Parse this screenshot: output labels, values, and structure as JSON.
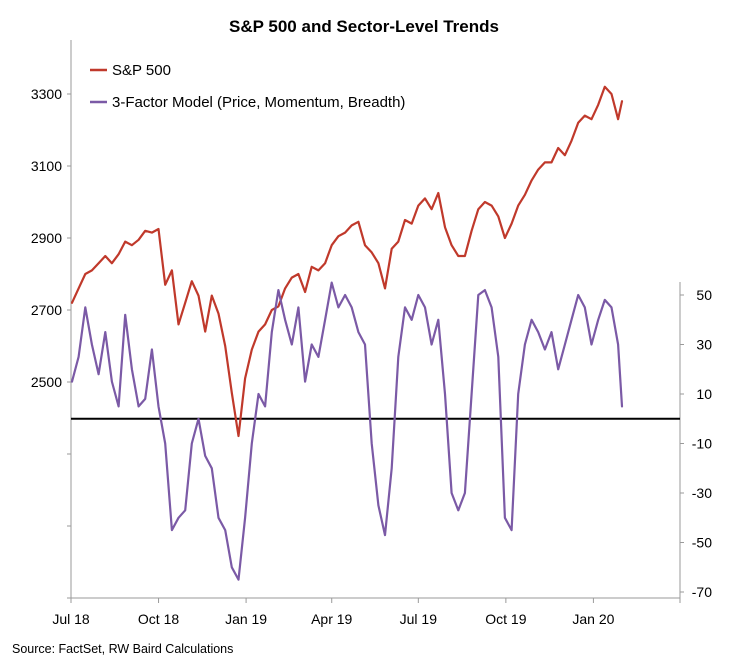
{
  "chart_data": {
    "type": "line",
    "title": "S&P 500 and Sector-Level Trends",
    "source": "Source: FactSet, RW Baird Calculations",
    "x_tick_labels": [
      "Jul 18",
      "Oct 18",
      "Jan 19",
      "Apr 19",
      "Jul 19",
      "Oct 19",
      "Jan 20"
    ],
    "x_tick_dates": [
      "2018-07-01",
      "2018-10-01",
      "2019-01-01",
      "2019-04-01",
      "2019-07-01",
      "2019-10-01",
      "2020-01-01"
    ],
    "xlim": [
      "2018-07-01",
      "2020-04-01"
    ],
    "left_axis": {
      "ticks": [
        2500,
        2700,
        2900,
        3100,
        3300
      ],
      "range": [
        1900,
        3450
      ],
      "series": "S&P 500"
    },
    "right_axis": {
      "ticks": [
        50,
        30,
        10,
        -10,
        -30,
        -50,
        -70
      ],
      "range": [
        -70,
        50
      ],
      "reference_line": 0,
      "series": "3-Factor Model (Price, Momentum, Breadth)"
    },
    "legend_position": "top-left",
    "series": [
      {
        "name": "S&P 500",
        "axis": "left",
        "color": "#C0392B",
        "points": [
          [
            "2018-07-02",
            2720
          ],
          [
            "2018-07-09",
            2760
          ],
          [
            "2018-07-16",
            2800
          ],
          [
            "2018-07-23",
            2810
          ],
          [
            "2018-07-30",
            2830
          ],
          [
            "2018-08-06",
            2850
          ],
          [
            "2018-08-13",
            2830
          ],
          [
            "2018-08-20",
            2855
          ],
          [
            "2018-08-27",
            2890
          ],
          [
            "2018-09-03",
            2880
          ],
          [
            "2018-09-10",
            2895
          ],
          [
            "2018-09-17",
            2920
          ],
          [
            "2018-09-24",
            2915
          ],
          [
            "2018-10-01",
            2925
          ],
          [
            "2018-10-08",
            2770
          ],
          [
            "2018-10-15",
            2810
          ],
          [
            "2018-10-22",
            2660
          ],
          [
            "2018-10-29",
            2720
          ],
          [
            "2018-11-05",
            2780
          ],
          [
            "2018-11-12",
            2740
          ],
          [
            "2018-11-19",
            2640
          ],
          [
            "2018-11-26",
            2740
          ],
          [
            "2018-12-03",
            2690
          ],
          [
            "2018-12-10",
            2600
          ],
          [
            "2018-12-17",
            2470
          ],
          [
            "2018-12-24",
            2350
          ],
          [
            "2018-12-31",
            2510
          ],
          [
            "2019-01-07",
            2590
          ],
          [
            "2019-01-14",
            2640
          ],
          [
            "2019-01-21",
            2660
          ],
          [
            "2019-01-28",
            2700
          ],
          [
            "2019-02-04",
            2710
          ],
          [
            "2019-02-11",
            2760
          ],
          [
            "2019-02-18",
            2790
          ],
          [
            "2019-02-25",
            2800
          ],
          [
            "2019-03-04",
            2750
          ],
          [
            "2019-03-11",
            2820
          ],
          [
            "2019-03-18",
            2810
          ],
          [
            "2019-03-25",
            2830
          ],
          [
            "2019-04-01",
            2880
          ],
          [
            "2019-04-08",
            2905
          ],
          [
            "2019-04-15",
            2915
          ],
          [
            "2019-04-22",
            2935
          ],
          [
            "2019-04-29",
            2945
          ],
          [
            "2019-05-06",
            2880
          ],
          [
            "2019-05-13",
            2860
          ],
          [
            "2019-05-20",
            2830
          ],
          [
            "2019-05-27",
            2760
          ],
          [
            "2019-06-03",
            2870
          ],
          [
            "2019-06-10",
            2890
          ],
          [
            "2019-06-17",
            2950
          ],
          [
            "2019-06-24",
            2940
          ],
          [
            "2019-07-01",
            2990
          ],
          [
            "2019-07-08",
            3010
          ],
          [
            "2019-07-15",
            2980
          ],
          [
            "2019-07-22",
            3025
          ],
          [
            "2019-07-29",
            2930
          ],
          [
            "2019-08-05",
            2880
          ],
          [
            "2019-08-12",
            2850
          ],
          [
            "2019-08-19",
            2850
          ],
          [
            "2019-08-26",
            2920
          ],
          [
            "2019-09-02",
            2980
          ],
          [
            "2019-09-09",
            3000
          ],
          [
            "2019-09-16",
            2990
          ],
          [
            "2019-09-23",
            2960
          ],
          [
            "2019-09-30",
            2900
          ],
          [
            "2019-10-07",
            2940
          ],
          [
            "2019-10-14",
            2990
          ],
          [
            "2019-10-21",
            3020
          ],
          [
            "2019-10-28",
            3060
          ],
          [
            "2019-11-04",
            3090
          ],
          [
            "2019-11-11",
            3110
          ],
          [
            "2019-11-18",
            3110
          ],
          [
            "2019-11-25",
            3150
          ],
          [
            "2019-12-02",
            3130
          ],
          [
            "2019-12-09",
            3170
          ],
          [
            "2019-12-16",
            3220
          ],
          [
            "2019-12-23",
            3240
          ],
          [
            "2019-12-30",
            3230
          ],
          [
            "2020-01-06",
            3270
          ],
          [
            "2020-01-13",
            3320
          ],
          [
            "2020-01-20",
            3300
          ],
          [
            "2020-01-27",
            3230
          ],
          [
            "2020-01-31",
            3280
          ]
        ]
      },
      {
        "name": "3-Factor Model (Price, Momentum, Breadth)",
        "axis": "right",
        "color": "#7B5AA6",
        "points": [
          [
            "2018-07-02",
            15
          ],
          [
            "2018-07-09",
            25
          ],
          [
            "2018-07-16",
            45
          ],
          [
            "2018-07-23",
            30
          ],
          [
            "2018-07-30",
            18
          ],
          [
            "2018-08-06",
            35
          ],
          [
            "2018-08-13",
            15
          ],
          [
            "2018-08-20",
            5
          ],
          [
            "2018-08-27",
            42
          ],
          [
            "2018-09-03",
            20
          ],
          [
            "2018-09-10",
            5
          ],
          [
            "2018-09-17",
            8
          ],
          [
            "2018-09-24",
            28
          ],
          [
            "2018-10-01",
            5
          ],
          [
            "2018-10-08",
            -10
          ],
          [
            "2018-10-15",
            -45
          ],
          [
            "2018-10-22",
            -40
          ],
          [
            "2018-10-29",
            -37
          ],
          [
            "2018-11-05",
            -10
          ],
          [
            "2018-11-12",
            0
          ],
          [
            "2018-11-19",
            -15
          ],
          [
            "2018-11-26",
            -20
          ],
          [
            "2018-12-03",
            -40
          ],
          [
            "2018-12-10",
            -45
          ],
          [
            "2018-12-17",
            -60
          ],
          [
            "2018-12-24",
            -65
          ],
          [
            "2018-12-31",
            -40
          ],
          [
            "2019-01-07",
            -10
          ],
          [
            "2019-01-14",
            10
          ],
          [
            "2019-01-21",
            5
          ],
          [
            "2019-01-28",
            35
          ],
          [
            "2019-02-04",
            52
          ],
          [
            "2019-02-11",
            40
          ],
          [
            "2019-02-18",
            30
          ],
          [
            "2019-02-25",
            45
          ],
          [
            "2019-03-04",
            15
          ],
          [
            "2019-03-11",
            30
          ],
          [
            "2019-03-18",
            25
          ],
          [
            "2019-03-25",
            40
          ],
          [
            "2019-04-01",
            55
          ],
          [
            "2019-04-08",
            45
          ],
          [
            "2019-04-15",
            50
          ],
          [
            "2019-04-22",
            45
          ],
          [
            "2019-04-29",
            35
          ],
          [
            "2019-05-06",
            30
          ],
          [
            "2019-05-13",
            -10
          ],
          [
            "2019-05-20",
            -35
          ],
          [
            "2019-05-27",
            -47
          ],
          [
            "2019-06-03",
            -20
          ],
          [
            "2019-06-10",
            25
          ],
          [
            "2019-06-17",
            45
          ],
          [
            "2019-06-24",
            40
          ],
          [
            "2019-07-01",
            50
          ],
          [
            "2019-07-08",
            45
          ],
          [
            "2019-07-15",
            30
          ],
          [
            "2019-07-22",
            40
          ],
          [
            "2019-07-29",
            10
          ],
          [
            "2019-08-05",
            -30
          ],
          [
            "2019-08-12",
            -37
          ],
          [
            "2019-08-19",
            -30
          ],
          [
            "2019-08-26",
            10
          ],
          [
            "2019-09-02",
            50
          ],
          [
            "2019-09-09",
            52
          ],
          [
            "2019-09-16",
            45
          ],
          [
            "2019-09-23",
            25
          ],
          [
            "2019-09-30",
            -40
          ],
          [
            "2019-10-07",
            -45
          ],
          [
            "2019-10-14",
            10
          ],
          [
            "2019-10-21",
            30
          ],
          [
            "2019-10-28",
            40
          ],
          [
            "2019-11-04",
            35
          ],
          [
            "2019-11-11",
            28
          ],
          [
            "2019-11-18",
            35
          ],
          [
            "2019-11-25",
            20
          ],
          [
            "2019-12-02",
            30
          ],
          [
            "2019-12-09",
            40
          ],
          [
            "2019-12-16",
            50
          ],
          [
            "2019-12-23",
            45
          ],
          [
            "2019-12-30",
            30
          ],
          [
            "2020-01-06",
            40
          ],
          [
            "2020-01-13",
            48
          ],
          [
            "2020-01-20",
            45
          ],
          [
            "2020-01-27",
            30
          ],
          [
            "2020-01-31",
            5
          ]
        ]
      }
    ]
  }
}
